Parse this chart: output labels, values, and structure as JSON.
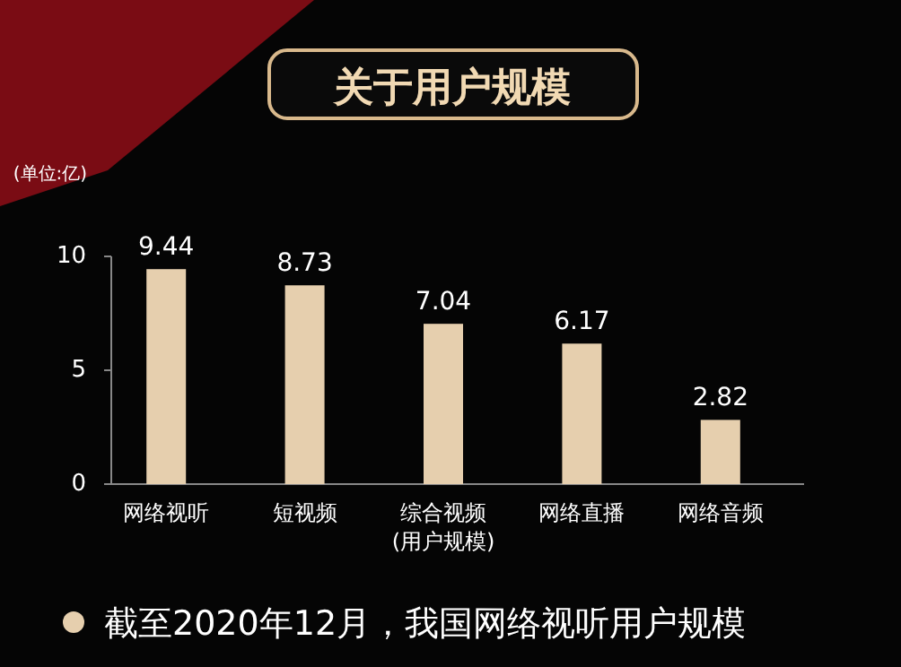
{
  "chart_data": {
    "type": "bar",
    "title": "关于用户规模",
    "ylabel": "(单位:亿)",
    "xlabel": "(用户规模)",
    "categories": [
      "网络视听",
      "短视频",
      "综合视频",
      "网络直播",
      "网络音频"
    ],
    "values": [
      9.44,
      8.73,
      7.04,
      6.17,
      2.82
    ],
    "color": "#e6cfae",
    "ylim": [
      0,
      10
    ],
    "yticks": [
      0,
      5,
      10
    ],
    "data_labels": true,
    "annotations": [
      "截至2020年12月，我国网络视听用户规模"
    ]
  }
}
